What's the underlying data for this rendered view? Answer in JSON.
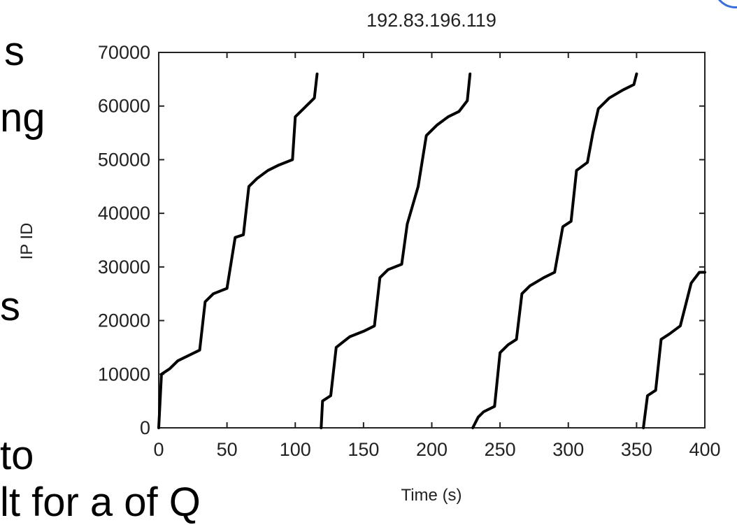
{
  "slide_text": [
    "s",
    "ng",
    "s",
    "to",
    "lt  for  a  of  Q"
  ],
  "accent_color": "#3a6fd8",
  "chart_data": {
    "type": "line",
    "title": "192.83.196.119",
    "xlabel": "Time (s)",
    "ylabel": "IP ID",
    "xlim": [
      0,
      400
    ],
    "ylim": [
      0,
      70000
    ],
    "xticks": [
      0,
      50,
      100,
      150,
      200,
      250,
      300,
      350,
      400
    ],
    "yticks": [
      0,
      10000,
      20000,
      30000,
      40000,
      50000,
      60000,
      70000
    ],
    "grid": false,
    "line_color": "#000000",
    "series": [
      {
        "values": [
          [
            0,
            0
          ],
          [
            2,
            10000
          ],
          [
            8,
            11000
          ],
          [
            14,
            12500
          ],
          [
            22,
            13500
          ],
          [
            30,
            14500
          ],
          [
            34,
            23500
          ],
          [
            40,
            25000
          ],
          [
            50,
            26000
          ],
          [
            56,
            35500
          ],
          [
            62,
            36000
          ],
          [
            66,
            45000
          ],
          [
            72,
            46500
          ],
          [
            80,
            48000
          ],
          [
            88,
            49000
          ],
          [
            98,
            50000
          ],
          [
            100,
            58000
          ],
          [
            106,
            59500
          ],
          [
            114,
            61500
          ],
          [
            116,
            66000
          ]
        ]
      },
      {
        "values": [
          [
            119,
            0
          ],
          [
            120,
            5000
          ],
          [
            126,
            6000
          ],
          [
            130,
            15000
          ],
          [
            140,
            17000
          ],
          [
            150,
            18000
          ],
          [
            158,
            19000
          ],
          [
            162,
            28000
          ],
          [
            168,
            29500
          ],
          [
            178,
            30500
          ],
          [
            182,
            38000
          ],
          [
            190,
            45000
          ],
          [
            196,
            54500
          ],
          [
            204,
            56500
          ],
          [
            212,
            58000
          ],
          [
            220,
            59000
          ],
          [
            226,
            61000
          ],
          [
            228,
            66000
          ]
        ]
      },
      {
        "values": [
          [
            230,
            0
          ],
          [
            234,
            2000
          ],
          [
            238,
            3000
          ],
          [
            246,
            4000
          ],
          [
            250,
            14000
          ],
          [
            256,
            15500
          ],
          [
            262,
            16500
          ],
          [
            266,
            25000
          ],
          [
            272,
            26500
          ],
          [
            282,
            28000
          ],
          [
            290,
            29000
          ],
          [
            296,
            37500
          ],
          [
            302,
            38500
          ],
          [
            306,
            48000
          ],
          [
            314,
            49500
          ],
          [
            318,
            55000
          ],
          [
            322,
            59500
          ],
          [
            330,
            61500
          ],
          [
            340,
            63000
          ],
          [
            348,
            64000
          ],
          [
            350,
            66000
          ]
        ]
      },
      {
        "values": [
          [
            355,
            0
          ],
          [
            358,
            6000
          ],
          [
            364,
            7000
          ],
          [
            368,
            16500
          ],
          [
            374,
            17500
          ],
          [
            382,
            19000
          ],
          [
            386,
            23000
          ],
          [
            390,
            27000
          ],
          [
            396,
            29000
          ],
          [
            400,
            29000
          ]
        ]
      }
    ]
  }
}
